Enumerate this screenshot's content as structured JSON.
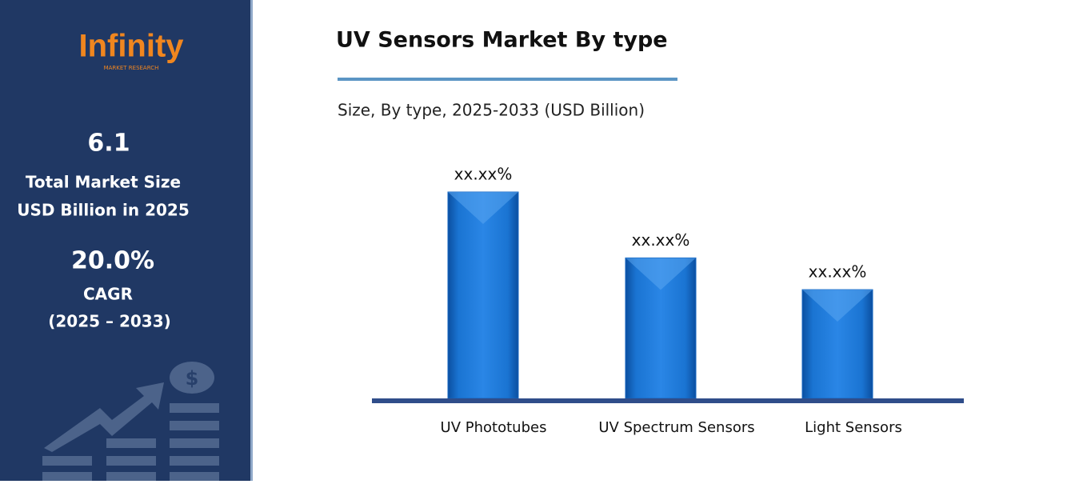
{
  "sidebar": {
    "logo": "Infinity",
    "logo_tagline": "MARKET RESEARCH",
    "market_size": "6.1",
    "market_size_label_1": "Total Market Size",
    "market_size_label_2": "USD Billion in 2025",
    "cagr": "20.0%",
    "cagr_label": "CAGR",
    "cagr_period": "(2025 – 2033)"
  },
  "chart_data": {
    "type": "bar",
    "title": "UV Sensors Market By type",
    "subtitle": "Size, By type, 2025-2033 (USD Billion)",
    "categories": [
      "UV Phototubes",
      "UV Spectrum Sensors",
      "Light Sensors"
    ],
    "values": [
      26,
      17.7,
      13.7
    ],
    "value_labels": [
      "xx.xx%",
      "xx.xx%",
      "xx.xx%"
    ],
    "color": "#1565c0"
  }
}
